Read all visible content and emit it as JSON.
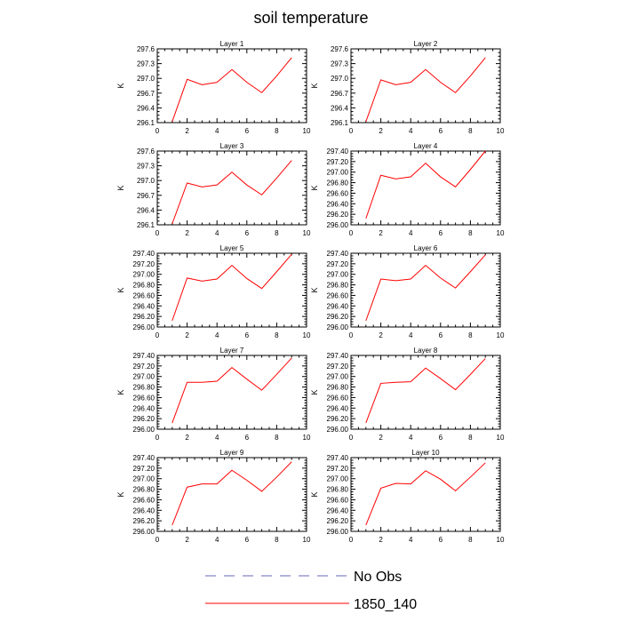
{
  "chart_data": {
    "type": "line",
    "title": "soil temperature",
    "xlim": [
      0,
      10
    ],
    "xticks": [
      0,
      2,
      4,
      6,
      8,
      10
    ],
    "x": [
      1,
      2,
      3,
      4,
      5,
      6,
      7,
      8,
      9
    ],
    "legend": {
      "placement": "bottom-center",
      "entries": [
        {
          "label": "No Obs",
          "color": "#6666bb",
          "dash": "dashed"
        },
        {
          "label": "1850_140",
          "color": "#ff0000",
          "dash": "solid"
        }
      ]
    },
    "panels": [
      {
        "title": "Layer 1",
        "ylabel": "K",
        "ylim": [
          296.1,
          297.6
        ],
        "yticks": [
          "296.1",
          "296.4",
          "296.7",
          "297.0",
          "297.3",
          "297.6"
        ],
        "series": [
          {
            "name": "1850_140",
            "values": [
              296.12,
              296.98,
              296.87,
              296.92,
              297.18,
              296.92,
              296.71,
              297.05,
              297.42
            ]
          }
        ]
      },
      {
        "title": "Layer 2",
        "ylabel": "K",
        "ylim": [
          296.1,
          297.6
        ],
        "yticks": [
          "296.1",
          "296.4",
          "296.7",
          "297.0",
          "297.3",
          "297.6"
        ],
        "series": [
          {
            "name": "1850_140",
            "values": [
              296.12,
              296.97,
              296.87,
              296.92,
              297.18,
              296.92,
              296.71,
              297.05,
              297.42
            ]
          }
        ]
      },
      {
        "title": "Layer 3",
        "ylabel": "K",
        "ylim": [
          296.1,
          297.6
        ],
        "yticks": [
          "296.1",
          "296.4",
          "296.7",
          "297.0",
          "297.3",
          "297.6"
        ],
        "series": [
          {
            "name": "1850_140",
            "values": [
              296.12,
              296.95,
              296.87,
              296.91,
              297.17,
              296.91,
              296.71,
              297.05,
              297.41
            ]
          }
        ]
      },
      {
        "title": "Layer 4",
        "ylabel": "K",
        "ylim": [
          296.0,
          297.4
        ],
        "yticks": [
          "296.00",
          "296.20",
          "296.40",
          "296.60",
          "296.80",
          "297.00",
          "297.20",
          "297.40"
        ],
        "series": [
          {
            "name": "1850_140",
            "values": [
              296.12,
              296.94,
              296.87,
              296.91,
              297.17,
              296.91,
              296.72,
              297.05,
              297.4
            ]
          }
        ]
      },
      {
        "title": "Layer 5",
        "ylabel": "K",
        "ylim": [
          296.0,
          297.4
        ],
        "yticks": [
          "296.00",
          "296.20",
          "296.40",
          "296.60",
          "296.80",
          "297.00",
          "297.20",
          "297.40"
        ],
        "series": [
          {
            "name": "1850_140",
            "values": [
              296.12,
              296.93,
              296.87,
              296.91,
              297.17,
              296.92,
              296.73,
              297.05,
              297.38
            ]
          }
        ]
      },
      {
        "title": "Layer 6",
        "ylabel": "K",
        "ylim": [
          296.0,
          297.4
        ],
        "yticks": [
          "296.00",
          "296.20",
          "296.40",
          "296.60",
          "296.80",
          "297.00",
          "297.20",
          "297.40"
        ],
        "series": [
          {
            "name": "1850_140",
            "values": [
              296.12,
              296.91,
              296.88,
              296.91,
              297.17,
              296.93,
              296.74,
              297.05,
              297.37
            ]
          }
        ]
      },
      {
        "title": "Layer 7",
        "ylabel": "K",
        "ylim": [
          296.0,
          297.4
        ],
        "yticks": [
          "296.00",
          "296.20",
          "296.40",
          "296.60",
          "296.80",
          "297.00",
          "297.20",
          "297.40"
        ],
        "series": [
          {
            "name": "1850_140",
            "values": [
              296.12,
              296.89,
              296.89,
              296.91,
              297.17,
              296.95,
              296.74,
              297.04,
              297.35
            ]
          }
        ]
      },
      {
        "title": "Layer 8",
        "ylabel": "K",
        "ylim": [
          296.0,
          297.4
        ],
        "yticks": [
          "296.00",
          "296.20",
          "296.40",
          "296.60",
          "296.80",
          "297.00",
          "297.20",
          "297.40"
        ],
        "series": [
          {
            "name": "1850_140",
            "values": [
              296.12,
              296.87,
              296.89,
              296.9,
              297.16,
              296.96,
              296.75,
              297.04,
              297.34
            ]
          }
        ]
      },
      {
        "title": "Layer 9",
        "ylabel": "K",
        "ylim": [
          296.0,
          297.4
        ],
        "yticks": [
          "296.00",
          "296.20",
          "296.40",
          "296.60",
          "296.80",
          "297.00",
          "297.20",
          "297.40"
        ],
        "series": [
          {
            "name": "1850_140",
            "values": [
              296.12,
              296.84,
              296.9,
              296.9,
              297.16,
              296.97,
              296.76,
              297.03,
              297.32
            ]
          }
        ]
      },
      {
        "title": "Layer 10",
        "ylabel": "K",
        "ylim": [
          296.0,
          297.4
        ],
        "yticks": [
          "296.00",
          "296.20",
          "296.40",
          "296.60",
          "296.80",
          "297.00",
          "297.20",
          "297.40"
        ],
        "series": [
          {
            "name": "1850_140",
            "values": [
              296.12,
              296.82,
              296.91,
              296.9,
              297.15,
              296.99,
              296.77,
              297.03,
              297.3
            ]
          }
        ]
      }
    ]
  }
}
